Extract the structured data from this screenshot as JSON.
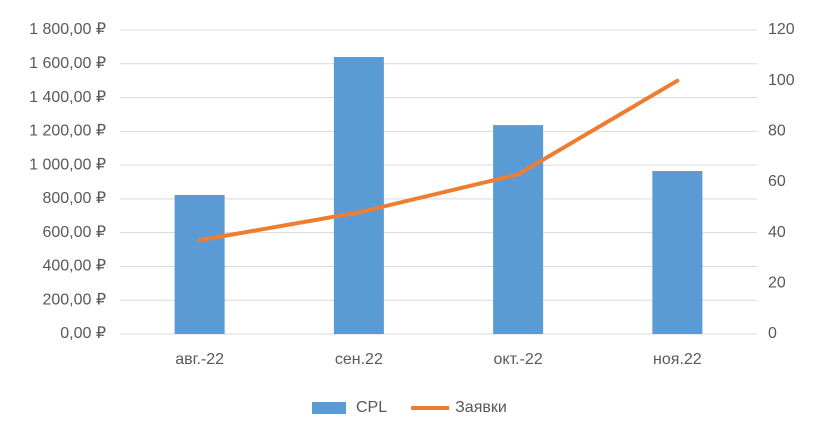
{
  "chart_data": {
    "type": "combo",
    "categories": [
      "авг.-22",
      "сен.22",
      "окт.-22",
      "ноя.22"
    ],
    "series": [
      {
        "name": "CPL",
        "type": "bar",
        "color": "#5b9bd5",
        "values": [
          823,
          1640,
          1237,
          965
        ]
      },
      {
        "name": "Заявки",
        "type": "line",
        "axis": "y2",
        "color": "#ed7d31",
        "values": [
          37,
          48,
          63,
          100
        ]
      }
    ],
    "ylim": [
      0,
      1800
    ],
    "yticks": [
      {
        "value": 0,
        "label": "0,00 ₽"
      },
      {
        "value": 200,
        "label": "200,00 ₽"
      },
      {
        "value": 400,
        "label": "400,00 ₽"
      },
      {
        "value": 600,
        "label": "600,00 ₽"
      },
      {
        "value": 800,
        "label": "800,00 ₽"
      },
      {
        "value": 1000,
        "label": "1 000,00 ₽"
      },
      {
        "value": 1200,
        "label": "1 200,00 ₽"
      },
      {
        "value": 1400,
        "label": "1 400,00 ₽"
      },
      {
        "value": 1600,
        "label": "1 600,00 ₽"
      },
      {
        "value": 1800,
        "label": "1 800,00 ₽"
      }
    ],
    "y2lim": [
      0,
      120
    ],
    "y2ticks": [
      0,
      20,
      40,
      60,
      80,
      100,
      120
    ],
    "grid": true,
    "legend": "bottom"
  }
}
